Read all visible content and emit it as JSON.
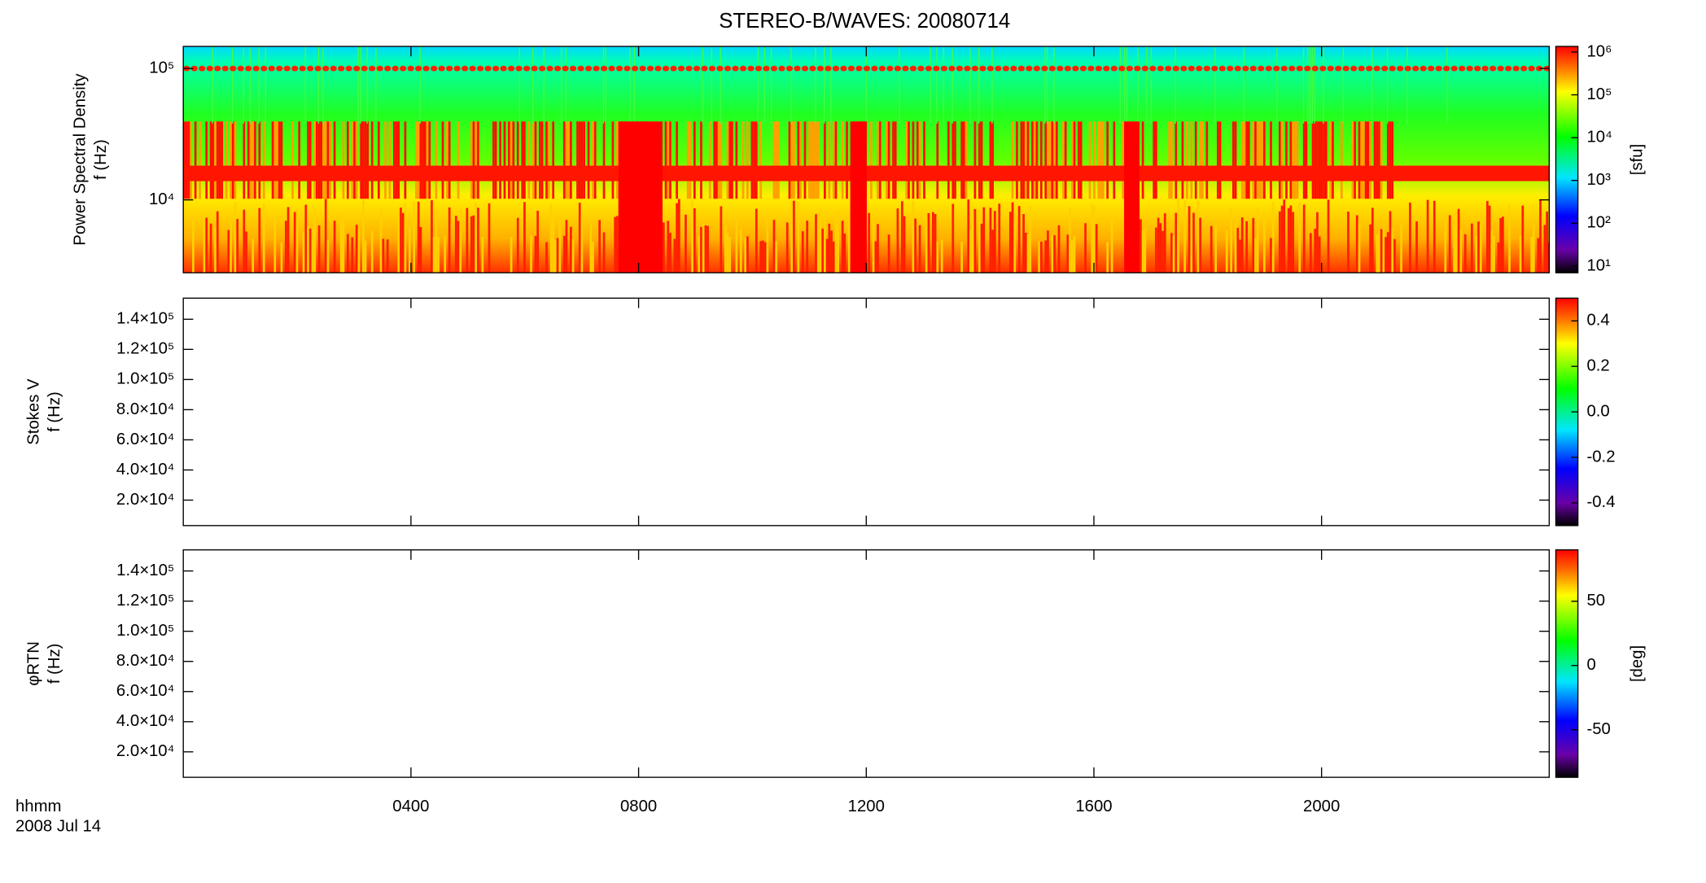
{
  "title": "STEREO-B/WAVES: 20080714",
  "x_axis": {
    "label": "hhmm",
    "date": "2008 Jul 14",
    "xlim": [
      0,
      24
    ],
    "xticks": [
      {
        "value": 4,
        "label": "0400"
      },
      {
        "value": 8,
        "label": "0800"
      },
      {
        "value": 12,
        "label": "1200"
      },
      {
        "value": 16,
        "label": "1600"
      },
      {
        "value": 20,
        "label": "2000"
      }
    ]
  },
  "chart_data": [
    {
      "type": "spectrogram",
      "ylabel": [
        "Power Spectral Density",
        "f (Hz)"
      ],
      "yscale": "log",
      "ylim": [
        2790,
        147000
      ],
      "yticks": [
        {
          "value": 10000,
          "label": "10⁴"
        },
        {
          "value": 100000,
          "label": "10⁵"
        }
      ],
      "colorbar": {
        "scale": "log",
        "range": [
          7,
          1350000
        ],
        "label": "[sfu]",
        "ticks": [
          {
            "value": 10,
            "label": "10¹"
          },
          {
            "value": 100,
            "label": "10²"
          },
          {
            "value": 1000,
            "label": "10³"
          },
          {
            "value": 10000,
            "label": "10⁴"
          },
          {
            "value": 100000,
            "label": "10⁵"
          },
          {
            "value": 1000000,
            "label": "10⁶"
          }
        ]
      }
    },
    {
      "type": "spectrogram",
      "ylabel": [
        "Stokes V",
        "f (Hz)"
      ],
      "yscale": "linear",
      "ylim": [
        3100,
        154000
      ],
      "yticks": [
        {
          "value": 20000,
          "label": "2.0×10⁴"
        },
        {
          "value": 40000,
          "label": "4.0×10⁴"
        },
        {
          "value": 60000,
          "label": "6.0×10⁴"
        },
        {
          "value": 80000,
          "label": "8.0×10⁴"
        },
        {
          "value": 100000,
          "label": "1.0×10⁵"
        },
        {
          "value": 120000,
          "label": "1.2×10⁵"
        },
        {
          "value": 140000,
          "label": "1.4×10⁵"
        }
      ],
      "colorbar": {
        "scale": "linear",
        "range": [
          -0.5,
          0.5
        ],
        "ticks": [
          {
            "value": -0.4,
            "label": "-0.4"
          },
          {
            "value": -0.2,
            "label": "-0.2"
          },
          {
            "value": 0,
            "label": "0.0"
          },
          {
            "value": 0.2,
            "label": "0.2"
          },
          {
            "value": 0.4,
            "label": "0.4"
          }
        ]
      }
    },
    {
      "type": "spectrogram",
      "ylabel": [
        "φRTN",
        "f (Hz)"
      ],
      "yscale": "linear",
      "ylim": [
        3100,
        154000
      ],
      "yticks": [
        {
          "value": 20000,
          "label": "2.0×10⁴"
        },
        {
          "value": 40000,
          "label": "4.0×10⁴"
        },
        {
          "value": 60000,
          "label": "6.0×10⁴"
        },
        {
          "value": 80000,
          "label": "8.0×10⁴"
        },
        {
          "value": 100000,
          "label": "1.0×10⁵"
        },
        {
          "value": 120000,
          "label": "1.2×10⁵"
        },
        {
          "value": 140000,
          "label": "1.4×10⁵"
        }
      ],
      "colorbar": {
        "scale": "linear",
        "range": [
          -87,
          90
        ],
        "label": "[deg]",
        "ticks": [
          -50,
          0,
          50
        ]
      }
    }
  ]
}
